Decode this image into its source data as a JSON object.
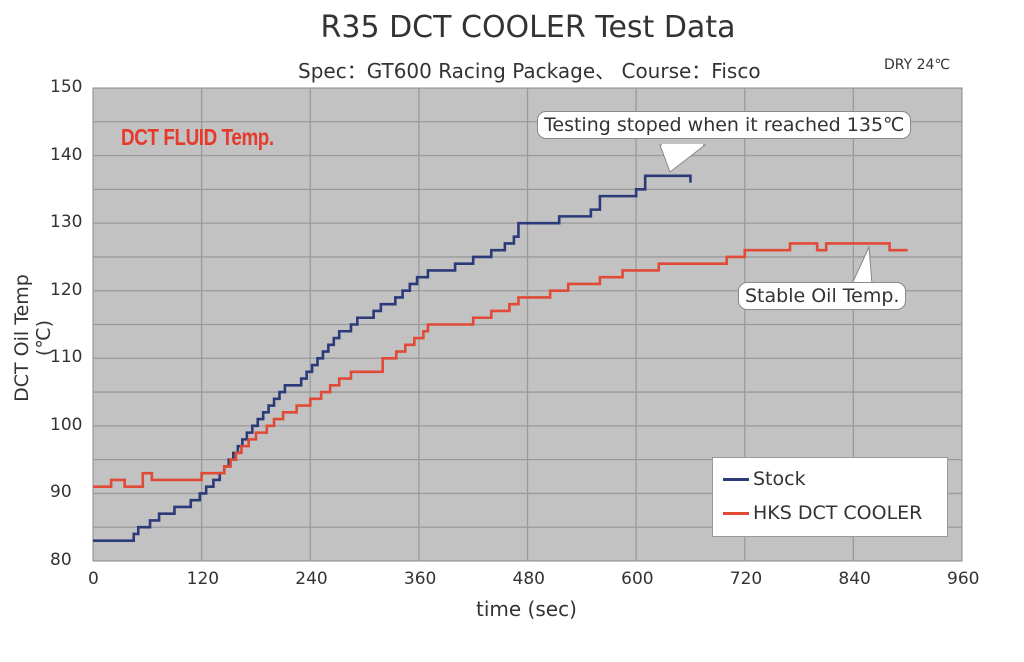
{
  "header": {
    "title": "R35 DCT COOLER  Test Data",
    "subtitle": "Spec：GT600 Racing Package、 Course：Fisco",
    "conditions": "DRY  24℃"
  },
  "annotations": {
    "badge": "DCT FLUID Temp.",
    "callout_stock": "Testing stoped when it reached 135℃",
    "callout_hks": "Stable Oil Temp."
  },
  "legend": {
    "items": [
      {
        "label": "Stock",
        "color": "#2b3a78"
      },
      {
        "label": "HKS DCT COOLER",
        "color": "#e04a36"
      }
    ]
  },
  "colors": {
    "plot_bg": "#c2c2c2",
    "grid": "#9a9a9a",
    "stock": "#2b3a78",
    "hks": "#e04a36",
    "badge": "#e53a2c"
  },
  "chart_data": {
    "type": "line",
    "title": "R35 DCT COOLER  Test Data",
    "subtitle": "Spec：GT600 Racing Package、 Course：Fisco",
    "xlabel": "time (sec)",
    "ylabel": "DCT Oil Temp (℃)",
    "xlim": [
      0,
      960
    ],
    "ylim": [
      80,
      150
    ],
    "xticks": [
      0,
      120,
      240,
      360,
      480,
      600,
      720,
      840,
      960
    ],
    "yticks": [
      80,
      90,
      100,
      110,
      120,
      130,
      140,
      150
    ],
    "grid": true,
    "legend_position": "lower right",
    "step": true,
    "series": [
      {
        "name": "Stock",
        "x": [
          0,
          45,
          50,
          55,
          63,
          73,
          90,
          100,
          108,
          118,
          125,
          133,
          140,
          145,
          150,
          155,
          160,
          165,
          170,
          176,
          182,
          188,
          194,
          200,
          206,
          212,
          220,
          230,
          236,
          242,
          248,
          254,
          260,
          266,
          272,
          278,
          285,
          292,
          300,
          310,
          318,
          326,
          334,
          342,
          350,
          358,
          370,
          390,
          400,
          420,
          440,
          455,
          465,
          470,
          500,
          515,
          550,
          560,
          600,
          610,
          650,
          660
        ],
        "values": [
          83,
          84,
          85,
          85,
          86,
          87,
          88,
          88,
          89,
          90,
          91,
          92,
          93,
          94,
          95,
          96,
          97,
          98,
          99,
          100,
          101,
          102,
          103,
          104,
          105,
          106,
          106,
          107,
          108,
          109,
          110,
          111,
          112,
          113,
          114,
          114,
          115,
          116,
          116,
          117,
          118,
          118,
          119,
          120,
          121,
          122,
          123,
          123,
          124,
          125,
          126,
          127,
          128,
          130,
          130,
          131,
          132,
          134,
          135,
          137,
          137,
          136
        ]
      },
      {
        "name": "HKS DCT COOLER",
        "x": [
          0,
          20,
          35,
          55,
          65,
          120,
          145,
          152,
          158,
          164,
          172,
          180,
          192,
          200,
          210,
          225,
          240,
          252,
          262,
          272,
          285,
          300,
          320,
          335,
          345,
          355,
          365,
          370,
          400,
          420,
          440,
          460,
          470,
          505,
          525,
          560,
          585,
          625,
          665,
          700,
          720,
          770,
          795,
          800,
          810,
          815,
          840,
          870,
          880,
          900
        ],
        "values": [
          91,
          92,
          91,
          93,
          92,
          93,
          94,
          95,
          96,
          97,
          98,
          99,
          100,
          101,
          102,
          103,
          104,
          105,
          106,
          107,
          108,
          108,
          110,
          111,
          112,
          113,
          114,
          115,
          115,
          116,
          117,
          118,
          119,
          120,
          121,
          122,
          123,
          124,
          124,
          125,
          126,
          127,
          127,
          126,
          127,
          127,
          127,
          127,
          126,
          126
        ]
      }
    ]
  }
}
